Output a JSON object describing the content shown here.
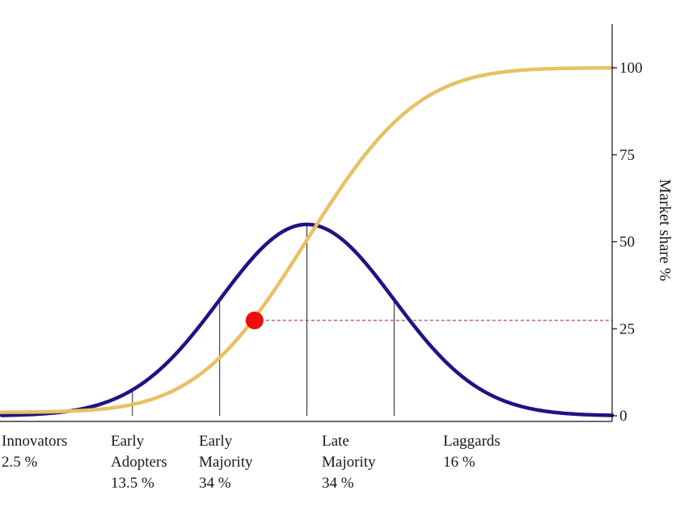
{
  "chart_data": {
    "type": "line",
    "title": "",
    "ylabel": "Market share %",
    "xlabel": "",
    "ylim": [
      0,
      100
    ],
    "y_ticks": [
      0,
      25,
      50,
      75,
      100
    ],
    "x_domain": [
      -3.5,
      3.5
    ],
    "segment_boundaries_sd": [
      -2,
      -1,
      0,
      1
    ],
    "categories": [
      {
        "lines": [
          "Innovators",
          "2.5 %"
        ],
        "share_percent": 2.5
      },
      {
        "lines": [
          "Early",
          "Adopters",
          "13.5 %"
        ],
        "share_percent": 13.5
      },
      {
        "lines": [
          "Early",
          "Majority",
          "34 %"
        ],
        "share_percent": 34
      },
      {
        "lines": [
          "Late",
          "Majority",
          "34 %"
        ],
        "share_percent": 34
      },
      {
        "lines": [
          "Laggards",
          "16 %"
        ],
        "share_percent": 16
      }
    ],
    "series": [
      {
        "kind": "adoption-bell",
        "color": "#1f1385",
        "curve": "normal-distribution",
        "peak_percent": 55
      },
      {
        "kind": "market-share-s-curve",
        "color": "#e8c165",
        "curve": "cumulative-normal",
        "min_percent": 1,
        "max_percent": 100
      }
    ],
    "marker": {
      "x_sd": -0.6,
      "y_percent": 27.4,
      "color": "#ee0e0e"
    },
    "reference_line": {
      "y_percent": 27.4,
      "color": "#9b1b1b",
      "style": "dashed"
    },
    "grid": false
  }
}
